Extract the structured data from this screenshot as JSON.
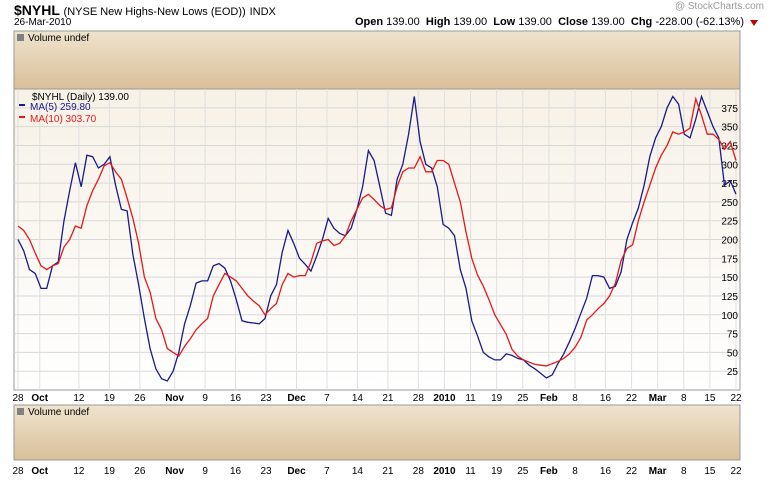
{
  "header": {
    "symbol": "$NYHL",
    "description": "(NYSE New Highs-New Lows (EOD))",
    "exchange": "INDX",
    "date": "26-Mar-2010",
    "watermark": "@ StockCharts.com",
    "open_label": "Open",
    "open": "139.00",
    "high_label": "High",
    "high": "139.00",
    "low_label": "Low",
    "low": "139.00",
    "close_label": "Close",
    "close": "139.00",
    "chg_label": "Chg",
    "chg": "-228.00 (-62.13%)"
  },
  "top_volume_label": "Volume undef",
  "bottom_volume_label": "Volume undef",
  "legend": {
    "main": "$NYHL (Daily) 139.00",
    "ma5": "MA(5) 259.80",
    "ma10": "MA(10) 303.70"
  },
  "colors": {
    "ma5": "#1a1a8c",
    "ma10": "#e31a1a",
    "panel": "#e6d2b0",
    "panel_top": "#f5eee2",
    "grid": "#cccccc"
  },
  "x_ticks": [
    "28",
    "Oct",
    "12",
    "19",
    "26",
    "Nov",
    "9",
    "16",
    "23",
    "Dec",
    "7",
    "14",
    "21",
    "28",
    "2010",
    "11",
    "19",
    "25",
    "Feb",
    "8",
    "16",
    "22",
    "Mar",
    "8",
    "15",
    "22"
  ],
  "x_ticks_bold": [
    "Oct",
    "Nov",
    "Dec",
    "2010",
    "Feb",
    "Mar"
  ],
  "chart_data": {
    "type": "line",
    "title": "$NYHL (NYSE New Highs-New Lows (EOD))",
    "ylim": [
      0,
      400
    ],
    "y_ticks": [
      25,
      50,
      75,
      100,
      125,
      150,
      175,
      200,
      225,
      250,
      275,
      300,
      325,
      350,
      375
    ],
    "grid": true,
    "legend_position": "top-left",
    "y_axis_side": "right",
    "series": [
      {
        "name": "MA(5) 259.80",
        "color": "#1a1a8c",
        "values": [
          200,
          185,
          160,
          155,
          135,
          135,
          165,
          170,
          225,
          265,
          302,
          270,
          312,
          310,
          295,
          300,
          310,
          272,
          240,
          238,
          180,
          140,
          95,
          55,
          28,
          15,
          12,
          25,
          50,
          88,
          112,
          142,
          145,
          145,
          165,
          168,
          162,
          145,
          120,
          92,
          90,
          89,
          88,
          95,
          125,
          140,
          183,
          212,
          195,
          175,
          167,
          158,
          178,
          200,
          228,
          215,
          208,
          205,
          215,
          240,
          270,
          318,
          305,
          270,
          235,
          232,
          280,
          300,
          340,
          390,
          330,
          300,
          295,
          270,
          220,
          215,
          205,
          160,
          135,
          92,
          72,
          50,
          44,
          40,
          40,
          48,
          46,
          42,
          40,
          33,
          28,
          22,
          16,
          20,
          35,
          48,
          64,
          82,
          102,
          122,
          152,
          152,
          150,
          135,
          138,
          157,
          200,
          222,
          242,
          272,
          310,
          335,
          350,
          375,
          390,
          380,
          340,
          335,
          360,
          390,
          370,
          350,
          335,
          272,
          278,
          260
        ],
        "x_idx": [
          0,
          1,
          2,
          3,
          4,
          5,
          6,
          7,
          8,
          9,
          10,
          11,
          12,
          13,
          14,
          15,
          16,
          17,
          18,
          19,
          20,
          21,
          22,
          23,
          24,
          25,
          26,
          27,
          28,
          29,
          30,
          31,
          32,
          33,
          34,
          35,
          36,
          37,
          38,
          39,
          40,
          41,
          42,
          43,
          44,
          45,
          46,
          47,
          48,
          49,
          50,
          51,
          52,
          53,
          54,
          55,
          56,
          57,
          58,
          59,
          60,
          61,
          62,
          63,
          64,
          65,
          66,
          67,
          68,
          69,
          70,
          71,
          72,
          73,
          74,
          75,
          76,
          77,
          78,
          79,
          80,
          81,
          82,
          83,
          84,
          85,
          86,
          87,
          88,
          89,
          90,
          91,
          92,
          93,
          94,
          95,
          96,
          97,
          98,
          99,
          100,
          101,
          102,
          103,
          104,
          105,
          106,
          107,
          108,
          109,
          110,
          111,
          112,
          113,
          114,
          115,
          116,
          117,
          118,
          119,
          120,
          121,
          122,
          123,
          124,
          125
        ]
      },
      {
        "name": "MA(10) 303.70",
        "color": "#e31a1a",
        "values": [
          218,
          212,
          200,
          182,
          165,
          160,
          165,
          168,
          190,
          200,
          218,
          215,
          245,
          265,
          280,
          298,
          302,
          290,
          280,
          255,
          228,
          195,
          150,
          130,
          95,
          80,
          55,
          50,
          45,
          58,
          68,
          80,
          88,
          95,
          125,
          140,
          155,
          150,
          145,
          135,
          125,
          118,
          112,
          100,
          108,
          115,
          140,
          155,
          150,
          152,
          152,
          170,
          195,
          198,
          200,
          192,
          195,
          205,
          225,
          240,
          255,
          260,
          253,
          245,
          240,
          242,
          270,
          290,
          295,
          295,
          310,
          290,
          290,
          305,
          305,
          300,
          275,
          250,
          210,
          175,
          153,
          138,
          120,
          100,
          87,
          74,
          54,
          45,
          40,
          37,
          34,
          33,
          32,
          35,
          38,
          42,
          48,
          57,
          70,
          93,
          100,
          108,
          115,
          125,
          142,
          172,
          188,
          193,
          225,
          250,
          272,
          295,
          312,
          325,
          343,
          340,
          343,
          348,
          387,
          365,
          340,
          340,
          333,
          320,
          330,
          305
        ],
        "x_idx": [
          0,
          1,
          2,
          3,
          4,
          5,
          6,
          7,
          8,
          9,
          10,
          11,
          12,
          13,
          14,
          15,
          16,
          17,
          18,
          19,
          20,
          21,
          22,
          23,
          24,
          25,
          26,
          27,
          28,
          29,
          30,
          31,
          32,
          33,
          34,
          35,
          36,
          37,
          38,
          39,
          40,
          41,
          42,
          43,
          44,
          45,
          46,
          47,
          48,
          49,
          50,
          51,
          52,
          53,
          54,
          55,
          56,
          57,
          58,
          59,
          60,
          61,
          62,
          63,
          64,
          65,
          66,
          67,
          68,
          69,
          70,
          71,
          72,
          73,
          74,
          75,
          76,
          77,
          78,
          79,
          80,
          81,
          82,
          83,
          84,
          85,
          86,
          87,
          88,
          89,
          90,
          91,
          92,
          93,
          94,
          95,
          96,
          97,
          98,
          99,
          100,
          101,
          102,
          103,
          104,
          105,
          106,
          107,
          108,
          109,
          110,
          111,
          112,
          113,
          114,
          115,
          116,
          117,
          118,
          119,
          120,
          121,
          122,
          123,
          124,
          125
        ]
      }
    ]
  }
}
